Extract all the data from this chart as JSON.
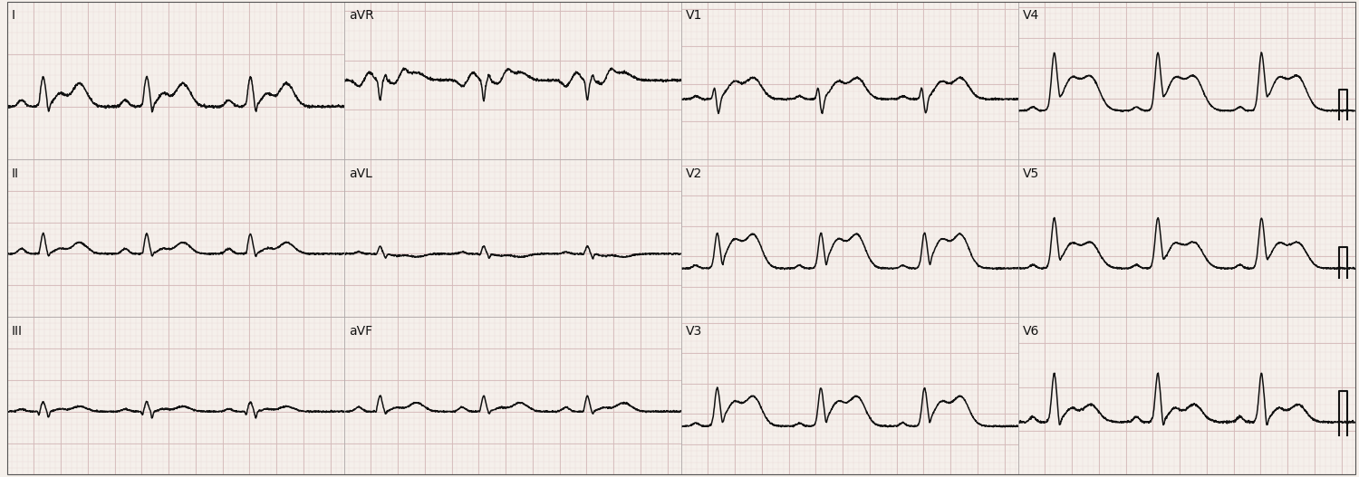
{
  "fig_width": 15.0,
  "fig_height": 5.27,
  "dpi": 100,
  "bg_color": "#f5f0eb",
  "grid_major_color": "#d4b8b8",
  "grid_minor_color": "#e8d4d4",
  "ecg_color": "#111111",
  "ecg_linewidth": 1.1,
  "label_fontsize": 10,
  "row_labels": [
    [
      "I",
      "aVR",
      "V1",
      "V4"
    ],
    [
      "II",
      "aVL",
      "V2",
      "V5"
    ],
    [
      "III",
      "aVF",
      "V3",
      "V6"
    ]
  ],
  "hr": 78,
  "duration_per_strip": 2.5,
  "fs": 500
}
